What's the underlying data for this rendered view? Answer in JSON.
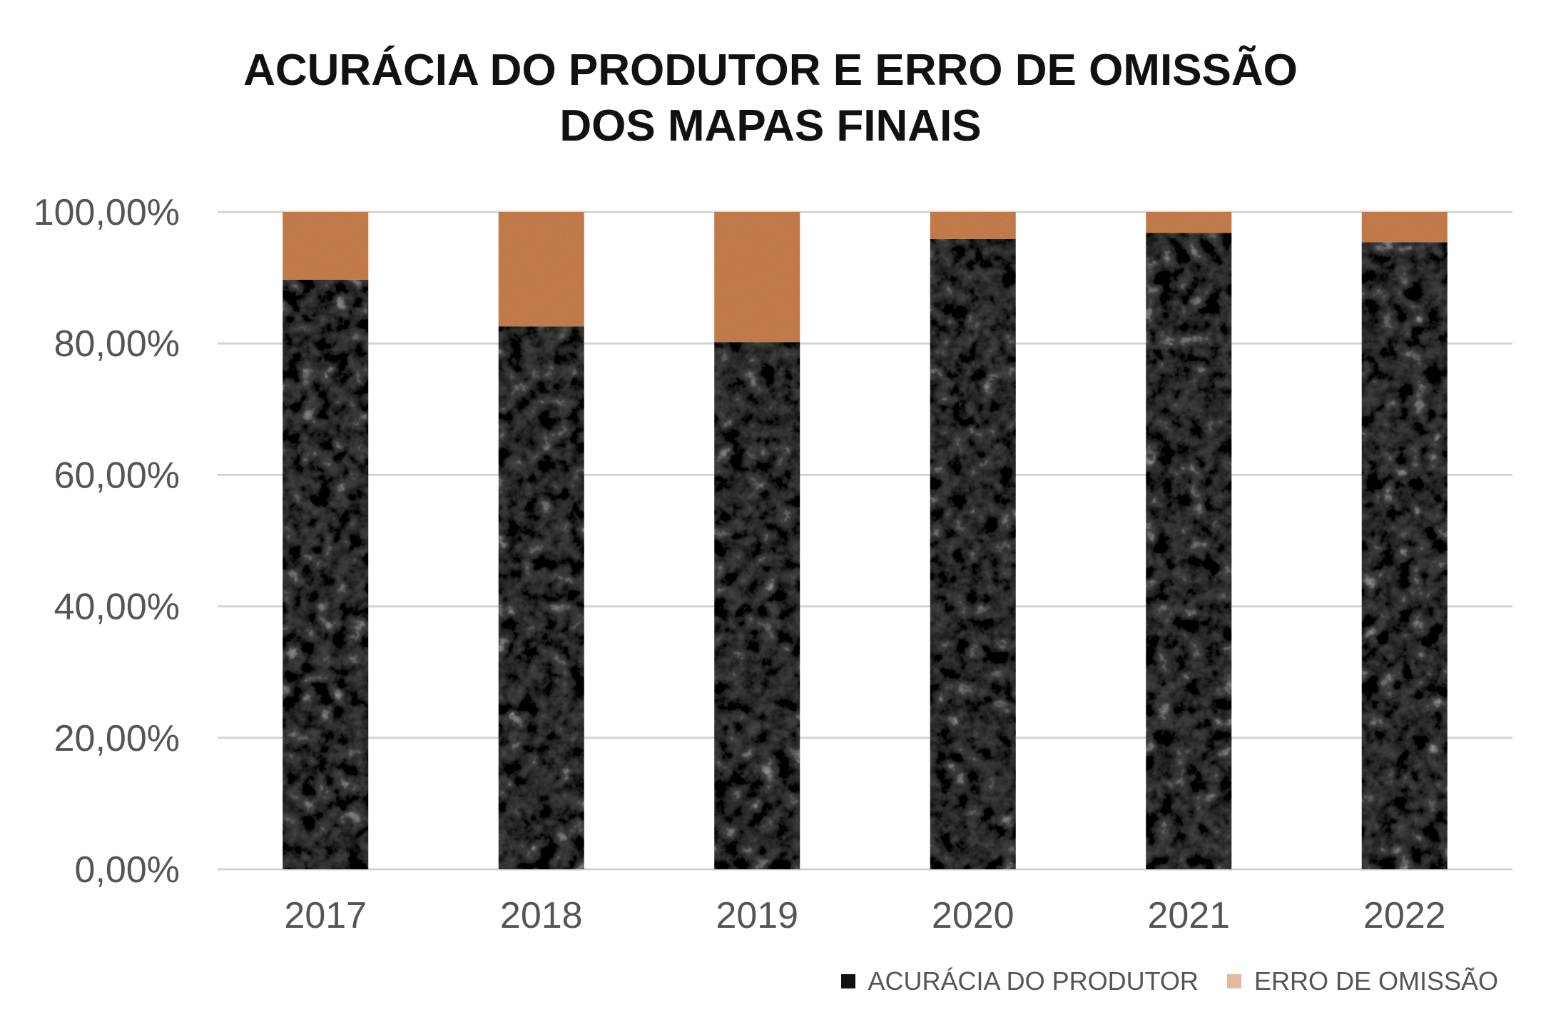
{
  "chart_data": {
    "type": "bar",
    "stacked": true,
    "title": "ACURÁCIA DO PRODUTOR E ERRO DE OMISSÃO DOS MAPAS FINAIS",
    "title_lines": [
      "ACURÁCIA DO PRODUTOR E ERRO DE OMISSÃO",
      "DOS MAPAS FINAIS"
    ],
    "categories": [
      "2017",
      "2018",
      "2019",
      "2020",
      "2021",
      "2022"
    ],
    "series": [
      {
        "name": "ACURÁCIA DO PRODUTOR",
        "values": [
          89.7,
          82.6,
          80.2,
          95.9,
          96.8,
          95.4
        ],
        "color": "#0d0d0d"
      },
      {
        "name": "ERRO DE OMISSÃO",
        "values": [
          10.3,
          17.4,
          19.8,
          4.1,
          3.2,
          4.6
        ],
        "color": "#c9804e"
      }
    ],
    "legend_swatch_colors": [
      "#111111",
      "#e3b9a0"
    ],
    "yticks": [
      "0,00%",
      "20,00%",
      "40,00%",
      "60,00%",
      "80,00%",
      "100,00%"
    ],
    "ylim": [
      0,
      100
    ],
    "grid": true,
    "legend_position": "bottom-right"
  }
}
